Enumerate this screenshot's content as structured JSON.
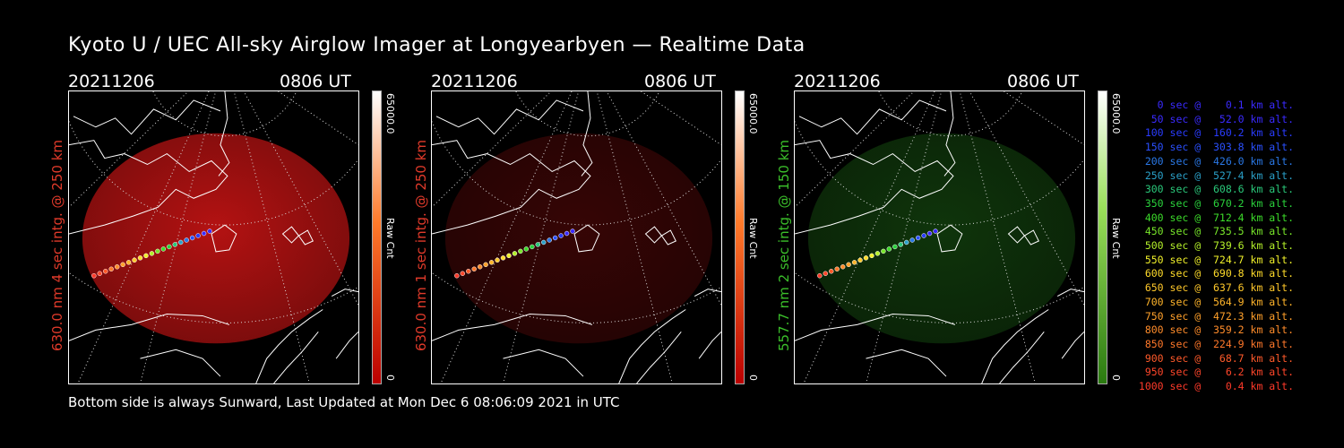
{
  "title": "Kyoto U / UEC All-sky Airglow Imager at Longyearbyen — Realtime Data",
  "footer": "Bottom side is always Sunward, Last Updated at Mon Dec  6 08:06:09 2021 in UTC",
  "colors": {
    "red_channel": "#c81414",
    "green_channel": "#2a8f1a",
    "red_label": "#e03a2a",
    "green_label": "#3bbf2a"
  },
  "panels": [
    {
      "date": "20211206",
      "time": "0806 UT",
      "side_label": "630.0 nm  4 sec intg. @ 250 km",
      "cbar_max": "65000.0",
      "cbar_label": "Raw Cnt",
      "cbar_min": "0",
      "channel": "red",
      "intensity": 0.6
    },
    {
      "date": "20211206",
      "time": "0806 UT",
      "side_label": "630.0 nm  1 sec intg. @ 250 km",
      "cbar_max": "65000.0",
      "cbar_label": "Raw Cnt",
      "cbar_min": "0",
      "channel": "red",
      "intensity": 0.18
    },
    {
      "date": "20211206",
      "time": "0806 UT",
      "side_label": "557.7 nm  2 sec intg. @ 150 km",
      "cbar_max": "65000.0",
      "cbar_label": "Raw Cnt",
      "cbar_min": "0",
      "channel": "green",
      "intensity": 0.25
    }
  ],
  "legend": [
    {
      "text": "0 sec @    0.1 km alt.",
      "color": "#3a2aff"
    },
    {
      "text": "50 sec @   52.0 km alt.",
      "color": "#3a2aff"
    },
    {
      "text": "100 sec @  160.2 km alt.",
      "color": "#2a3cff"
    },
    {
      "text": "150 sec @  303.8 km alt.",
      "color": "#2a50ff"
    },
    {
      "text": "200 sec @  426.0 km alt.",
      "color": "#2a78e6"
    },
    {
      "text": "250 sec @  527.4 km alt.",
      "color": "#2aa0c8"
    },
    {
      "text": "300 sec @  608.6 km alt.",
      "color": "#2ac87a"
    },
    {
      "text": "350 sec @  670.2 km alt.",
      "color": "#2ad23c"
    },
    {
      "text": "400 sec @  712.4 km alt.",
      "color": "#3cdc2a"
    },
    {
      "text": "450 sec @  735.5 km alt.",
      "color": "#78e62a"
    },
    {
      "text": "500 sec @  739.6 km alt.",
      "color": "#b4f02a"
    },
    {
      "text": "550 sec @  724.7 km alt.",
      "color": "#f0f02a"
    },
    {
      "text": "600 sec @  690.8 km alt.",
      "color": "#ffdc2a"
    },
    {
      "text": "650 sec @  637.6 km alt.",
      "color": "#ffc82a"
    },
    {
      "text": "700 sec @  564.9 km alt.",
      "color": "#ffb42a"
    },
    {
      "text": "750 sec @  472.3 km alt.",
      "color": "#ffa02a"
    },
    {
      "text": "800 sec @  359.2 km alt.",
      "color": "#ff8c2a"
    },
    {
      "text": "850 sec @  224.9 km alt.",
      "color": "#ff782a"
    },
    {
      "text": "900 sec @   68.7 km alt.",
      "color": "#ff5a2a"
    },
    {
      "text": "950 sec @    6.2 km alt.",
      "color": "#ff462a"
    },
    {
      "text": "1000 sec @    0.4 km alt.",
      "color": "#ff3a2a"
    }
  ]
}
